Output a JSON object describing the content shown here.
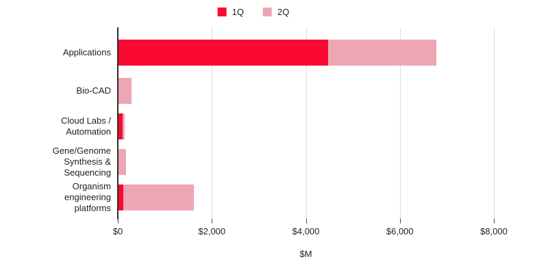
{
  "chart_data": {
    "type": "bar",
    "orientation": "horizontal",
    "stacked": true,
    "title": "",
    "xlabel": "$M",
    "ylabel": "",
    "xlim": [
      0,
      8000
    ],
    "grid": true,
    "legend_position": "top",
    "categories": [
      "Applications",
      "Bio-CAD",
      "Cloud Labs / Automation",
      "Gene/Genome Synthesis & Sequencing",
      "Organism engineering platforms"
    ],
    "categories_wrapped": [
      "Applications",
      "Bio-CAD",
      "Cloud Labs /\nAutomation",
      "Gene/Genome\nSynthesis &\nSequencing",
      "Organism\nengineering\nplatforms"
    ],
    "series": [
      {
        "name": "1Q",
        "color": "#fa0a32",
        "values": [
          4460,
          0,
          90,
          0,
          100
        ]
      },
      {
        "name": "2Q",
        "color": "#eda6b4",
        "values": [
          2300,
          280,
          40,
          160,
          1510
        ]
      }
    ],
    "x_ticks": [
      "$0",
      "$2,000",
      "$4,000",
      "$6,000",
      "$8,000"
    ],
    "x_tick_values": [
      0,
      2000,
      4000,
      6000,
      8000
    ]
  },
  "colors": {
    "background": "#ffffff",
    "gridline": "#dadce0",
    "axis_line": "#2b2b2b",
    "text": "#202124",
    "series_1q": "#fa0a32",
    "series_2q": "#eda6b4"
  }
}
